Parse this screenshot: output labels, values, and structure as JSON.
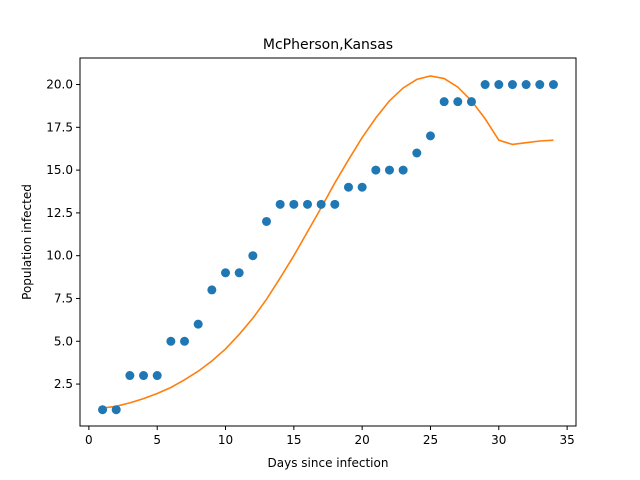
{
  "chart_data": {
    "type": "scatter",
    "title": "McPherson,Kansas",
    "xlabel": "Days since infection",
    "ylabel": "Population infected",
    "xlim": [
      -0.65,
      35.65
    ],
    "ylim": [
      0.05,
      21.55
    ],
    "xticks": [
      0,
      5,
      10,
      15,
      20,
      25,
      30,
      35
    ],
    "xtick_labels": [
      "0",
      "5",
      "10",
      "15",
      "20",
      "25",
      "30",
      "35"
    ],
    "yticks": [
      2.5,
      5.0,
      7.5,
      10.0,
      12.5,
      15.0,
      17.5,
      20.0
    ],
    "ytick_labels": [
      "2.5",
      "5.0",
      "7.5",
      "10.0",
      "12.5",
      "15.0",
      "17.5",
      "20.0"
    ],
    "grid": false,
    "series": [
      {
        "kind": "scatter",
        "color": "#1f77b4",
        "x": [
          1,
          2,
          3,
          4,
          5,
          6,
          7,
          8,
          9,
          10,
          11,
          12,
          13,
          14,
          15,
          16,
          17,
          18,
          19,
          20,
          21,
          22,
          23,
          24,
          25,
          26,
          27,
          28,
          29,
          30,
          31,
          32,
          33,
          34
        ],
        "y": [
          1,
          1,
          3,
          3,
          3,
          5,
          5,
          6,
          8,
          9,
          9,
          10,
          12,
          13,
          13,
          13,
          13,
          13,
          14,
          14,
          15,
          15,
          15,
          16,
          17,
          19,
          19,
          19,
          20,
          20,
          20,
          20,
          20,
          20
        ]
      },
      {
        "kind": "line",
        "color": "#ff7f0e",
        "x": [
          1,
          2,
          3,
          4,
          5,
          6,
          7,
          8,
          9,
          10,
          11,
          12,
          13,
          14,
          15,
          16,
          17,
          18,
          19,
          20,
          21,
          22,
          23,
          24,
          25,
          26,
          27,
          28,
          29,
          30,
          31,
          32,
          33,
          34
        ],
        "y": [
          1.1,
          1.2,
          1.4,
          1.65,
          1.95,
          2.3,
          2.75,
          3.25,
          3.85,
          4.55,
          5.4,
          6.35,
          7.45,
          8.7,
          10.0,
          11.4,
          12.8,
          14.25,
          15.6,
          16.9,
          18.05,
          19.05,
          19.8,
          20.3,
          20.5,
          20.35,
          19.85,
          19.05,
          18.0,
          16.75,
          16.5,
          16.6,
          16.7,
          16.75
        ]
      }
    ]
  }
}
